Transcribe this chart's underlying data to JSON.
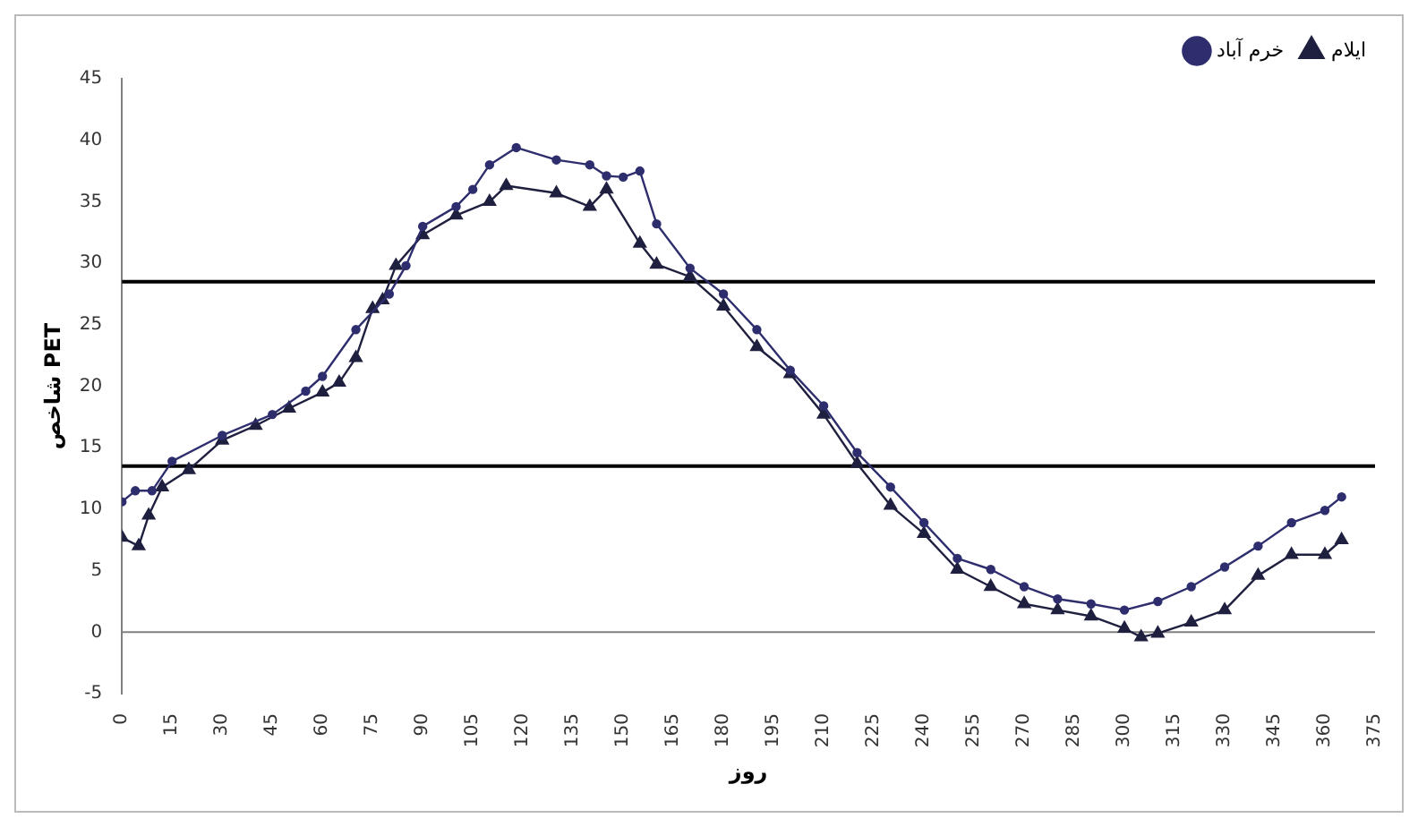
{
  "chart_data": {
    "type": "line",
    "xlabel": "روز",
    "ylabel": "شاخص PET",
    "xlim": [
      0,
      375
    ],
    "xticks": [
      0,
      15,
      30,
      45,
      60,
      75,
      90,
      105,
      120,
      135,
      150,
      165,
      180,
      195,
      210,
      225,
      240,
      255,
      270,
      285,
      300,
      315,
      330,
      345,
      360,
      375
    ],
    "ylim": [
      -5,
      45
    ],
    "yticks": [
      -5,
      0,
      5,
      10,
      15,
      20,
      25,
      30,
      35,
      40,
      45
    ],
    "grid": false,
    "legend": "top right",
    "ref_lines": [
      {
        "axis": "y",
        "value": 28.5,
        "color": "#000000"
      },
      {
        "axis": "y",
        "value": 13.5,
        "color": "#000000"
      },
      {
        "axis": "y",
        "value": 0,
        "color": "#808080"
      }
    ],
    "series": [
      {
        "name": "خرم آباد",
        "color": "#2e2e6e",
        "marker": "circle",
        "x": [
          0,
          4,
          9,
          15,
          30,
          45,
          55,
          60,
          70,
          80,
          85,
          90,
          100,
          105,
          110,
          118,
          130,
          140,
          145,
          150,
          155,
          160,
          170,
          180,
          190,
          200,
          210,
          220,
          230,
          240,
          250,
          260,
          270,
          280,
          290,
          300,
          310,
          320,
          330,
          340,
          350,
          360,
          365
        ],
        "values": [
          10.6,
          11.5,
          11.5,
          13.9,
          16,
          17.7,
          19.6,
          20.8,
          24.6,
          27.5,
          29.8,
          33,
          34.6,
          36,
          38,
          39.4,
          38.4,
          38,
          37.1,
          37,
          37.5,
          33.2,
          29.6,
          27.5,
          24.6,
          21.3,
          18.4,
          14.6,
          11.8,
          8.9,
          6,
          5.1,
          3.7,
          2.7,
          2.3,
          1.8,
          2.5,
          3.7,
          5.3,
          7,
          8.9,
          9.9,
          11
        ]
      },
      {
        "name": "ایلام",
        "color": "#1f1f3f",
        "marker": "triangle",
        "x": [
          0,
          5,
          8,
          12,
          20,
          30,
          40,
          50,
          60,
          65,
          70,
          75,
          78,
          82,
          90,
          100,
          110,
          115,
          130,
          140,
          145,
          155,
          160,
          170,
          180,
          190,
          200,
          210,
          220,
          230,
          240,
          250,
          260,
          270,
          280,
          290,
          300,
          305,
          310,
          320,
          330,
          340,
          350,
          360,
          365
        ],
        "values": [
          7.7,
          7,
          9.5,
          11.8,
          13.2,
          15.6,
          16.8,
          18.2,
          19.5,
          20.3,
          22.3,
          26.3,
          27,
          29.8,
          32.3,
          33.9,
          35,
          36.3,
          35.7,
          34.6,
          36,
          31.6,
          29.9,
          28.9,
          26.5,
          23.2,
          21,
          17.7,
          13.7,
          10.3,
          8,
          5.1,
          3.7,
          2.3,
          1.8,
          1.3,
          0.3,
          -0.4,
          -0.1,
          0.8,
          1.8,
          4.6,
          6.3,
          6.3,
          7.5
        ]
      }
    ]
  }
}
